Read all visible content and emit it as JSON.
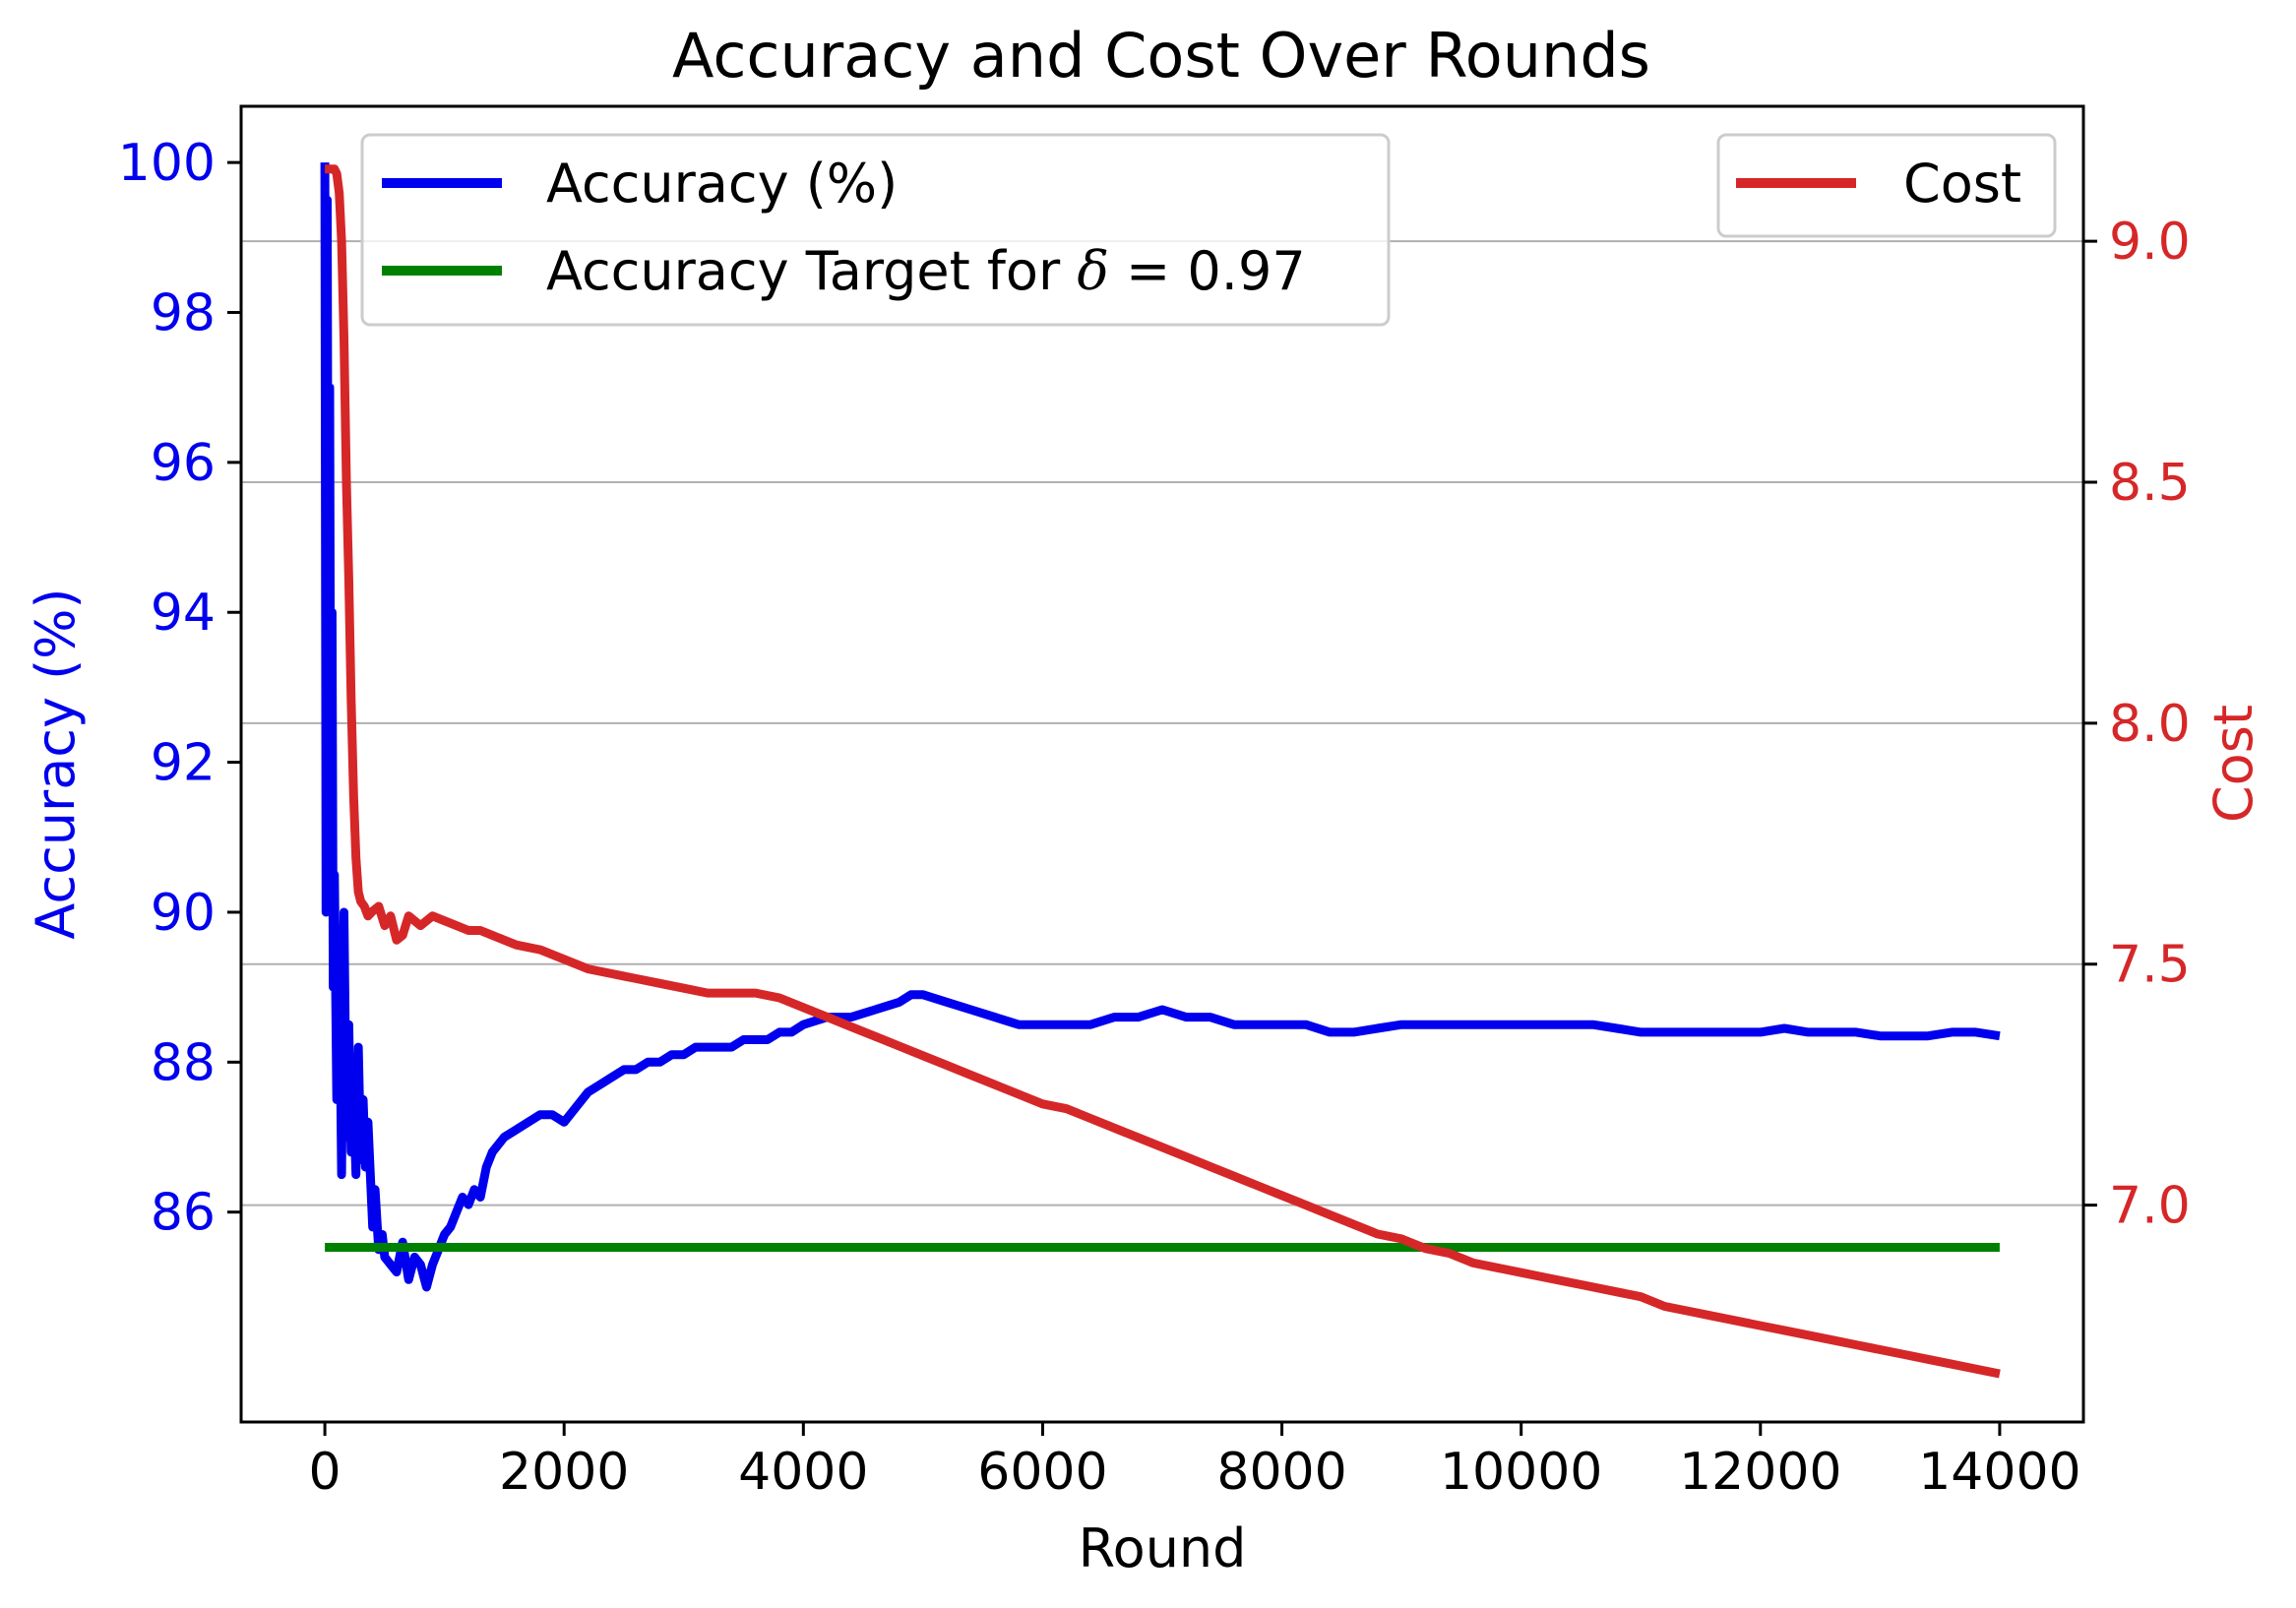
{
  "chart_data": {
    "type": "line",
    "title": "Accuracy and Cost Over Rounds",
    "xlabel": "Round",
    "ylabel_left": "Accuracy (%)",
    "ylabel_right": "Cost",
    "xlim": [
      -700,
      14700
    ],
    "ylim_left": [
      83.2,
      100.75
    ],
    "ylim_right": [
      6.55,
      9.28
    ],
    "x_ticks": [
      0,
      2000,
      4000,
      6000,
      8000,
      10000,
      12000,
      14000
    ],
    "y_left_ticks": [
      86,
      88,
      90,
      92,
      94,
      96,
      98,
      100
    ],
    "y_right_ticks": [
      7.0,
      7.5,
      8.0,
      8.5,
      9.0
    ],
    "y_right_tick_labels": [
      "7.0",
      "7.5",
      "8.0",
      "8.5",
      "9.0"
    ],
    "grid": "horizontal at right-axis ticks",
    "legend_left": {
      "placement": "upper-left",
      "entries": [
        {
          "label": "Accuracy (%)",
          "color": "#0000ee"
        },
        {
          "label_prefix": "Accuracy Target for ",
          "label_symbol": "δ",
          "label_suffix": " = 0.97",
          "color": "#008000"
        }
      ]
    },
    "legend_right": {
      "placement": "upper-right",
      "entries": [
        {
          "label": "Cost",
          "color": "#d62728"
        }
      ]
    },
    "colors": {
      "accuracy": "#0000ee",
      "target": "#008000",
      "cost": "#d62728",
      "left_axis": "#0000ee",
      "right_axis": "#d62728",
      "grid": "#b0b0b0"
    },
    "series": [
      {
        "name": "Accuracy (%)",
        "axis": "left",
        "color": "#0000ee",
        "x": [
          0,
          10,
          20,
          30,
          40,
          50,
          60,
          70,
          80,
          100,
          120,
          140,
          160,
          180,
          200,
          220,
          240,
          260,
          280,
          300,
          320,
          340,
          360,
          380,
          400,
          420,
          450,
          480,
          500,
          550,
          600,
          650,
          700,
          750,
          800,
          850,
          900,
          950,
          1000,
          1050,
          1100,
          1150,
          1200,
          1250,
          1300,
          1350,
          1400,
          1500,
          1600,
          1700,
          1800,
          1900,
          2000,
          2100,
          2200,
          2300,
          2400,
          2500,
          2600,
          2700,
          2800,
          2900,
          3000,
          3100,
          3200,
          3300,
          3400,
          3500,
          3600,
          3700,
          3800,
          3900,
          4000,
          4200,
          4400,
          4600,
          4800,
          4900,
          5000,
          5200,
          5400,
          5600,
          5800,
          6000,
          6200,
          6400,
          6600,
          6800,
          7000,
          7200,
          7400,
          7600,
          7800,
          8000,
          8200,
          8400,
          8600,
          8800,
          9000,
          9200,
          9400,
          9600,
          9800,
          10000,
          10200,
          10400,
          10600,
          10800,
          11000,
          11200,
          11400,
          11600,
          11800,
          12000,
          12200,
          12400,
          12600,
          12800,
          13000,
          13200,
          13400,
          13600,
          13800,
          14000
        ],
        "y": [
          100,
          90,
          99.5,
          92,
          97,
          90.5,
          94,
          89,
          90.5,
          87.5,
          89.5,
          86.5,
          90,
          87,
          88.5,
          86.8,
          87.5,
          86.5,
          88.2,
          86.7,
          87.5,
          86.6,
          87.2,
          86.5,
          85.8,
          86.3,
          85.5,
          85.7,
          85.4,
          85.3,
          85.2,
          85.6,
          85.1,
          85.4,
          85.3,
          85.0,
          85.3,
          85.5,
          85.7,
          85.8,
          86.0,
          86.2,
          86.1,
          86.3,
          86.2,
          86.6,
          86.8,
          87.0,
          87.1,
          87.2,
          87.3,
          87.3,
          87.2,
          87.4,
          87.6,
          87.7,
          87.8,
          87.9,
          87.9,
          88.0,
          88.0,
          88.1,
          88.1,
          88.2,
          88.2,
          88.2,
          88.2,
          88.3,
          88.3,
          88.3,
          88.4,
          88.4,
          88.5,
          88.6,
          88.6,
          88.7,
          88.8,
          88.9,
          88.9,
          88.8,
          88.7,
          88.6,
          88.5,
          88.5,
          88.5,
          88.5,
          88.6,
          88.6,
          88.7,
          88.6,
          88.6,
          88.5,
          88.5,
          88.5,
          88.5,
          88.4,
          88.4,
          88.45,
          88.5,
          88.5,
          88.5,
          88.5,
          88.5,
          88.5,
          88.5,
          88.5,
          88.5,
          88.45,
          88.4,
          88.4,
          88.4,
          88.4,
          88.4,
          88.4,
          88.45,
          88.4,
          88.4,
          88.4,
          88.35,
          88.35,
          88.35,
          88.4,
          88.4,
          88.35
        ]
      },
      {
        "name": "Accuracy Target for δ = 0.97",
        "axis": "left",
        "color": "#008000",
        "x": [
          0,
          14000
        ],
        "y": [
          85.53,
          85.53
        ]
      },
      {
        "name": "Cost",
        "axis": "right",
        "color": "#d62728",
        "x": [
          0,
          50,
          80,
          100,
          120,
          140,
          160,
          180,
          200,
          220,
          240,
          260,
          280,
          300,
          330,
          360,
          400,
          450,
          500,
          550,
          600,
          650,
          700,
          800,
          900,
          1000,
          1100,
          1200,
          1300,
          1400,
          1500,
          1600,
          1800,
          2000,
          2200,
          2400,
          2600,
          2800,
          3000,
          3200,
          3400,
          3600,
          3800,
          4000,
          4200,
          4400,
          4600,
          4800,
          5000,
          5200,
          5400,
          5600,
          5800,
          6000,
          6200,
          6400,
          6600,
          6800,
          7000,
          7200,
          7400,
          7600,
          7800,
          8000,
          8200,
          8400,
          8600,
          8800,
          9000,
          9200,
          9400,
          9600,
          9800,
          10000,
          10200,
          10400,
          10600,
          10800,
          11000,
          11200,
          11400,
          11600,
          11800,
          12000,
          12200,
          12400,
          12600,
          12800,
          13000,
          13200,
          13400,
          13600,
          13800,
          14000
        ],
        "y": [
          9.15,
          9.15,
          9.15,
          9.14,
          9.1,
          9.0,
          8.8,
          8.5,
          8.3,
          8.05,
          7.85,
          7.72,
          7.65,
          7.63,
          7.62,
          7.6,
          7.61,
          7.62,
          7.58,
          7.6,
          7.55,
          7.56,
          7.6,
          7.58,
          7.6,
          7.59,
          7.58,
          7.57,
          7.57,
          7.56,
          7.55,
          7.54,
          7.53,
          7.51,
          7.49,
          7.48,
          7.47,
          7.46,
          7.45,
          7.44,
          7.44,
          7.44,
          7.43,
          7.41,
          7.39,
          7.37,
          7.35,
          7.33,
          7.31,
          7.29,
          7.27,
          7.25,
          7.23,
          7.21,
          7.2,
          7.18,
          7.16,
          7.14,
          7.12,
          7.1,
          7.08,
          7.06,
          7.04,
          7.02,
          7.0,
          6.98,
          6.96,
          6.94,
          6.93,
          6.91,
          6.9,
          6.88,
          6.87,
          6.86,
          6.85,
          6.84,
          6.83,
          6.82,
          6.81,
          6.79,
          6.78,
          6.77,
          6.76,
          6.75,
          6.74,
          6.73,
          6.72,
          6.71,
          6.7,
          6.69,
          6.68,
          6.67,
          6.66,
          6.65
        ]
      }
    ]
  }
}
